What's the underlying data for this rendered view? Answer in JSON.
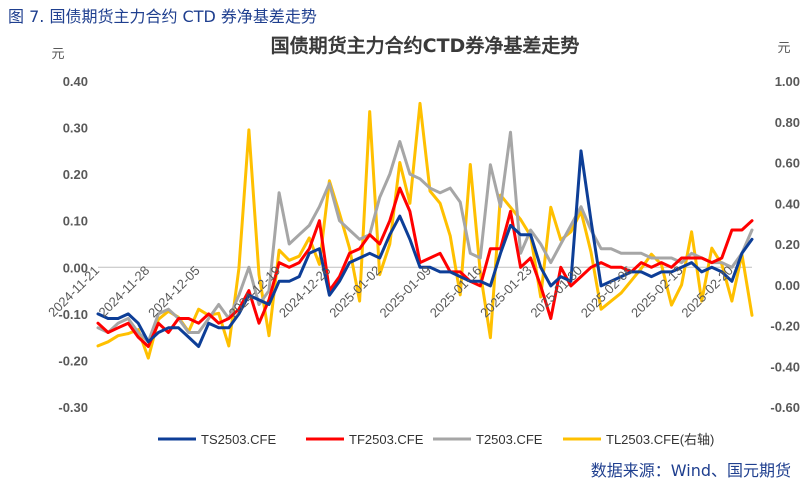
{
  "figure_caption": "图 7. 国债期货主力合约 CTD 券净基差走势",
  "source_note": "数据来源：Wind、国元期货",
  "chart_data": {
    "type": "line",
    "title": "国债期货主力合约CTD券净基差走势",
    "left_unit": "元",
    "right_unit": "元",
    "ylim": [
      -0.3,
      0.4
    ],
    "y_ticks": [
      "0.40",
      "0.30",
      "0.20",
      "0.10",
      "0.00",
      "-0.10",
      "-0.20",
      "-0.30"
    ],
    "y2lim": [
      -0.6,
      1.0
    ],
    "y2_ticks": [
      "1.00",
      "0.80",
      "0.60",
      "0.40",
      "0.20",
      "0.00",
      "-0.20",
      "-0.40",
      "-0.60"
    ],
    "x_tick_labels": [
      "2024-11-21",
      "2024-11-28",
      "2024-12-05",
      "2024-12-19",
      "2024-12-26",
      "2025-01-02",
      "2025-01-09",
      "2025-01-16",
      "2025-01-23",
      "2025-01-30",
      "2025-02-06",
      "2025-02-13",
      "2025-02-20"
    ],
    "x_tick_index": [
      0,
      5,
      10,
      18,
      23,
      28,
      33,
      38,
      43,
      48,
      53,
      58,
      63
    ],
    "num_points": 66,
    "grid": false,
    "legend_position": "bottom",
    "colors": {
      "TS": "#0d3e97",
      "TF": "#ff0000",
      "T": "#a6a6a6",
      "TL": "#ffc000",
      "axis": "#595959"
    },
    "series": [
      {
        "name": "TS2503.CFE",
        "axis": "left",
        "values": [
          -0.1,
          -0.11,
          -0.11,
          -0.1,
          -0.12,
          -0.16,
          -0.14,
          -0.13,
          -0.13,
          -0.15,
          -0.17,
          -0.12,
          -0.13,
          -0.13,
          -0.1,
          -0.06,
          -0.07,
          -0.08,
          -0.03,
          -0.03,
          -0.02,
          0.03,
          0.04,
          -0.06,
          -0.03,
          0.01,
          0.02,
          0.03,
          0.02,
          0.07,
          0.11,
          0.06,
          0.0,
          0.0,
          -0.01,
          -0.01,
          -0.02,
          -0.03,
          -0.03,
          -0.04,
          0.03,
          0.09,
          0.07,
          0.07,
          0.0,
          -0.04,
          -0.02,
          -0.03,
          0.25,
          0.1,
          -0.04,
          -0.03,
          -0.02,
          -0.01,
          -0.01,
          -0.02,
          -0.01,
          -0.01,
          0.0,
          0.01,
          -0.01,
          0.0,
          -0.01,
          -0.03,
          0.03,
          0.06
        ],
        "right_values": null
      },
      {
        "name": "TF2503.CFE",
        "axis": "left",
        "values": [
          -0.12,
          -0.14,
          -0.13,
          -0.12,
          -0.15,
          -0.17,
          -0.12,
          -0.14,
          -0.11,
          -0.11,
          -0.12,
          -0.1,
          -0.12,
          -0.11,
          -0.09,
          -0.05,
          -0.12,
          -0.07,
          0.01,
          0.0,
          0.01,
          0.04,
          0.1,
          -0.05,
          -0.02,
          0.03,
          0.04,
          0.07,
          0.05,
          0.1,
          0.17,
          0.12,
          0.01,
          0.02,
          0.03,
          -0.01,
          -0.01,
          -0.03,
          -0.04,
          0.04,
          0.04,
          0.12,
          0.0,
          0.02,
          -0.04,
          -0.11,
          0.0,
          -0.04,
          -0.02,
          0.0,
          0.01,
          0.0,
          0.0,
          -0.01,
          0.01,
          0.0,
          0.01,
          0.0,
          0.02,
          0.02,
          0.02,
          0.01,
          0.02,
          0.08,
          0.08,
          0.1
        ],
        "right_values": null
      },
      {
        "name": "T2503.CFE",
        "axis": "left",
        "values": [
          -0.13,
          -0.14,
          -0.12,
          -0.11,
          -0.14,
          -0.16,
          -0.1,
          -0.09,
          -0.11,
          -0.14,
          -0.14,
          -0.11,
          -0.08,
          -0.11,
          -0.06,
          0.0,
          -0.08,
          -0.05,
          0.16,
          0.05,
          0.07,
          0.09,
          0.13,
          0.18,
          0.1,
          0.08,
          0.06,
          0.07,
          0.15,
          0.2,
          0.27,
          0.2,
          0.19,
          0.17,
          0.16,
          0.17,
          0.14,
          0.03,
          0.02,
          0.22,
          0.13,
          0.29,
          0.03,
          0.08,
          0.05,
          0.01,
          0.05,
          0.09,
          0.13,
          0.08,
          0.04,
          0.04,
          0.03,
          0.03,
          0.03,
          0.02,
          0.02,
          0.02,
          0.01,
          0.03,
          0.02,
          0.01,
          0.01,
          0.0,
          0.03,
          0.08
        ],
        "right_values": null
      },
      {
        "name": "TL2503.CFE(右轴)",
        "axis": "right",
        "values": [
          -0.3,
          -0.28,
          -0.25,
          -0.24,
          -0.22,
          -0.36,
          -0.17,
          -0.13,
          -0.16,
          -0.23,
          -0.12,
          -0.15,
          -0.14,
          -0.3,
          0.08,
          0.76,
          0.05,
          -0.25,
          0.17,
          0.12,
          0.14,
          0.23,
          0.1,
          0.51,
          0.35,
          0.18,
          -0.08,
          0.85,
          0.05,
          0.2,
          0.6,
          0.4,
          0.89,
          0.46,
          0.4,
          0.24,
          -0.05,
          0.59,
          0.06,
          -0.26,
          0.44,
          0.38,
          0.32,
          0.24,
          -0.06,
          0.38,
          0.22,
          0.26,
          0.36,
          0.16,
          -0.12,
          -0.08,
          -0.04,
          0.02,
          0.08,
          0.15,
          0.1,
          -0.1,
          0.0,
          0.26,
          -0.08,
          0.18,
          0.1,
          -0.08,
          0.15,
          -0.15
        ],
        "right_values": null
      }
    ]
  }
}
